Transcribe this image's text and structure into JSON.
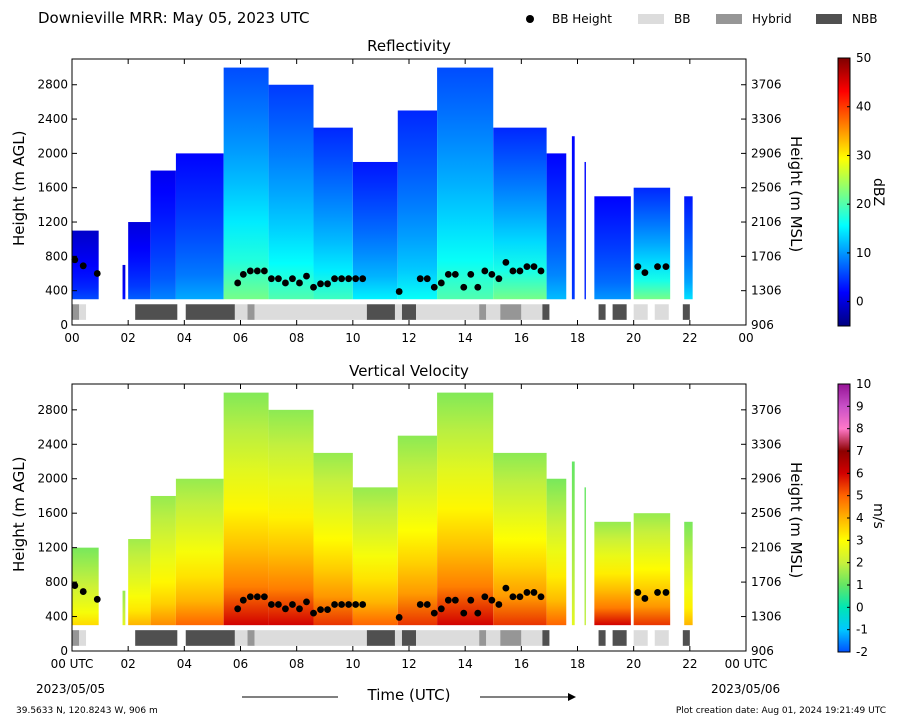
{
  "figure_title": "Downieville MRR:  May 05, 2023 UTC",
  "legend": [
    {
      "label": "BB Height",
      "kind": "dot",
      "color": "#000000"
    },
    {
      "label": "BB",
      "kind": "swatch",
      "color": "#dcdcdc"
    },
    {
      "label": "Hybrid",
      "kind": "swatch",
      "color": "#969696"
    },
    {
      "label": "NBB",
      "kind": "swatch",
      "color": "#505050"
    }
  ],
  "footer": {
    "location": "39.5633 N, 120.8243 W, 906 m",
    "creation": "Plot creation date: Aug 01, 2024 19:21:49 UTC"
  },
  "x_axis": {
    "label": "Time (UTC)",
    "ticks": [
      "00",
      "02",
      "04",
      "06",
      "08",
      "10",
      "12",
      "14",
      "16",
      "18",
      "20",
      "22",
      "00"
    ],
    "tick_values": [
      0,
      2,
      4,
      6,
      8,
      10,
      12,
      14,
      16,
      18,
      20,
      22,
      24
    ],
    "bottom_ticks": [
      "00 UTC",
      "02",
      "04",
      "06",
      "08",
      "10",
      "12",
      "14",
      "16",
      "18",
      "20",
      "22",
      "00 UTC"
    ],
    "start_date": "2023/05/05",
    "end_date": "2023/05/06",
    "range": [
      0,
      24
    ]
  },
  "left_axis": {
    "label": "Height (m AGL)",
    "ticks": [
      "0",
      "400",
      "800",
      "1200",
      "1600",
      "2000",
      "2400",
      "2800"
    ],
    "tick_values": [
      0,
      400,
      800,
      1200,
      1600,
      2000,
      2400,
      2800
    ],
    "range": [
      0,
      3100
    ]
  },
  "right_axis": {
    "label": "Height (m MSL)",
    "ticks": [
      "906",
      "1306",
      "1706",
      "2106",
      "2506",
      "2906",
      "3306",
      "3706"
    ]
  },
  "colors": {
    "bb": "#dcdcdc",
    "hybrid": "#969696",
    "nbb": "#505050",
    "dot": "#000000"
  },
  "chart_data": [
    {
      "type": "heatmap",
      "title": "Reflectivity",
      "xlabel": "",
      "ylabel": "Height (m AGL)",
      "y2label": "Height (m MSL)",
      "colorbar_label": "dBZ",
      "colorbar_ticks": [
        "0",
        "10",
        "20",
        "30",
        "40",
        "50"
      ],
      "colorbar_tick_values": [
        0,
        10,
        20,
        30,
        40,
        50
      ],
      "colorbar_range": [
        -5,
        50
      ],
      "colormap": [
        "#00007f",
        "#0000ff",
        "#007fff",
        "#00ffff",
        "#7fff7f",
        "#ffff00",
        "#ff7f00",
        "#ff0000",
        "#7f0000"
      ],
      "echo_columns": [
        {
          "t0": 0.0,
          "t1": 0.95,
          "top": 1100,
          "v_low": 6,
          "v_high": -1
        },
        {
          "t0": 1.8,
          "t1": 1.9,
          "top": 700,
          "v_low": 3,
          "v_high": 0
        },
        {
          "t0": 2.0,
          "t1": 2.8,
          "top": 1200,
          "v_low": 7,
          "v_high": 0
        },
        {
          "t0": 2.8,
          "t1": 3.7,
          "top": 1800,
          "v_low": 9,
          "v_high": 1
        },
        {
          "t0": 3.7,
          "t1": 5.4,
          "top": 2000,
          "v_low": 11,
          "v_high": 2
        },
        {
          "t0": 5.4,
          "t1": 7.0,
          "top": 3000,
          "v_low": 22,
          "v_high": 6
        },
        {
          "t0": 7.0,
          "t1": 8.6,
          "top": 2800,
          "v_low": 20,
          "v_high": 5
        },
        {
          "t0": 8.6,
          "t1": 10.0,
          "top": 2300,
          "v_low": 19,
          "v_high": 4
        },
        {
          "t0": 10.0,
          "t1": 11.6,
          "top": 1900,
          "v_low": 15,
          "v_high": 3
        },
        {
          "t0": 11.6,
          "t1": 13.0,
          "top": 2500,
          "v_low": 16,
          "v_high": 4
        },
        {
          "t0": 13.0,
          "t1": 15.0,
          "top": 3000,
          "v_low": 20,
          "v_high": 6
        },
        {
          "t0": 15.0,
          "t1": 16.9,
          "top": 2300,
          "v_low": 22,
          "v_high": 4
        },
        {
          "t0": 16.9,
          "t1": 17.6,
          "top": 2000,
          "v_low": 12,
          "v_high": 2
        },
        {
          "t0": 17.8,
          "t1": 17.9,
          "top": 2200,
          "v_low": 5,
          "v_high": 2
        },
        {
          "t0": 18.25,
          "t1": 18.3,
          "top": 1900,
          "v_low": 4,
          "v_high": 2
        },
        {
          "t0": 18.6,
          "t1": 19.9,
          "top": 1500,
          "v_low": 10,
          "v_high": 2
        },
        {
          "t0": 20.0,
          "t1": 21.3,
          "top": 1600,
          "v_low": 22,
          "v_high": 4
        },
        {
          "t0": 21.8,
          "t1": 22.1,
          "top": 1500,
          "v_low": 14,
          "v_high": 3
        }
      ]
    },
    {
      "type": "heatmap",
      "title": "Vertical Velocity",
      "xlabel": "Time (UTC)",
      "ylabel": "Height (m AGL)",
      "y2label": "Height (m MSL)",
      "colorbar_label": "m/s",
      "colorbar_ticks": [
        "-2",
        "-1",
        "0",
        "1",
        "2",
        "3",
        "4",
        "5",
        "6",
        "7",
        "8",
        "9",
        "10"
      ],
      "colorbar_tick_values": [
        -2,
        -1,
        0,
        1,
        2,
        3,
        4,
        5,
        6,
        7,
        8,
        9,
        10
      ],
      "colorbar_range": [
        -2,
        10
      ],
      "colormap": [
        "#0050ff",
        "#00c8ff",
        "#00e6b4",
        "#64e664",
        "#c8f03c",
        "#ffff00",
        "#ffb400",
        "#ff6400",
        "#d20000",
        "#8c0000",
        "#ff78c8",
        "#c850c8",
        "#961496"
      ],
      "echo_columns": [
        {
          "t0": 0.0,
          "t1": 0.95,
          "top": 1200,
          "v_low": 3.5,
          "v_high": 1.2
        },
        {
          "t0": 1.8,
          "t1": 1.9,
          "top": 700,
          "v_low": 2.5,
          "v_high": 1.5
        },
        {
          "t0": 2.0,
          "t1": 2.8,
          "top": 1300,
          "v_low": 4.0,
          "v_high": 1.6
        },
        {
          "t0": 2.8,
          "t1": 3.7,
          "top": 1800,
          "v_low": 4.5,
          "v_high": 1.5
        },
        {
          "t0": 3.7,
          "t1": 5.4,
          "top": 2000,
          "v_low": 5.0,
          "v_high": 1.5
        },
        {
          "t0": 5.4,
          "t1": 7.0,
          "top": 3000,
          "v_low": 6.0,
          "v_high": 1.3
        },
        {
          "t0": 7.0,
          "t1": 8.6,
          "top": 2800,
          "v_low": 6.0,
          "v_high": 1.4
        },
        {
          "t0": 8.6,
          "t1": 10.0,
          "top": 2300,
          "v_low": 5.5,
          "v_high": 1.5
        },
        {
          "t0": 10.0,
          "t1": 11.6,
          "top": 1900,
          "v_low": 5.0,
          "v_high": 1.5
        },
        {
          "t0": 11.6,
          "t1": 13.0,
          "top": 2500,
          "v_low": 5.5,
          "v_high": 1.4
        },
        {
          "t0": 13.0,
          "t1": 15.0,
          "top": 3000,
          "v_low": 6.0,
          "v_high": 1.3
        },
        {
          "t0": 15.0,
          "t1": 16.9,
          "top": 2300,
          "v_low": 5.5,
          "v_high": 1.4
        },
        {
          "t0": 16.9,
          "t1": 17.6,
          "top": 2000,
          "v_low": 5.0,
          "v_high": 1.2
        },
        {
          "t0": 17.8,
          "t1": 17.9,
          "top": 2200,
          "v_low": 2.5,
          "v_high": 1.0
        },
        {
          "t0": 18.25,
          "t1": 18.3,
          "top": 1900,
          "v_low": 2.0,
          "v_high": 1.0
        },
        {
          "t0": 18.6,
          "t1": 19.9,
          "top": 1500,
          "v_low": 6.0,
          "v_high": 1.5
        },
        {
          "t0": 20.0,
          "t1": 21.3,
          "top": 1600,
          "v_low": 5.5,
          "v_high": 1.5
        },
        {
          "t0": 21.8,
          "t1": 22.1,
          "top": 1500,
          "v_low": 4.0,
          "v_high": 1.2
        }
      ]
    }
  ],
  "bright_band_heights": [
    {
      "t": 0.1,
      "h": 760
    },
    {
      "t": 0.4,
      "h": 690
    },
    {
      "t": 0.9,
      "h": 600
    },
    {
      "t": 5.9,
      "h": 490
    },
    {
      "t": 6.1,
      "h": 590
    },
    {
      "t": 6.35,
      "h": 630
    },
    {
      "t": 6.6,
      "h": 630
    },
    {
      "t": 6.85,
      "h": 630
    },
    {
      "t": 7.1,
      "h": 540
    },
    {
      "t": 7.35,
      "h": 540
    },
    {
      "t": 7.6,
      "h": 490
    },
    {
      "t": 7.85,
      "h": 540
    },
    {
      "t": 8.1,
      "h": 490
    },
    {
      "t": 8.35,
      "h": 570
    },
    {
      "t": 8.6,
      "h": 440
    },
    {
      "t": 8.85,
      "h": 480
    },
    {
      "t": 9.1,
      "h": 480
    },
    {
      "t": 9.35,
      "h": 540
    },
    {
      "t": 9.6,
      "h": 540
    },
    {
      "t": 9.85,
      "h": 540
    },
    {
      "t": 10.1,
      "h": 540
    },
    {
      "t": 10.35,
      "h": 540
    },
    {
      "t": 11.65,
      "h": 390
    },
    {
      "t": 12.4,
      "h": 540
    },
    {
      "t": 12.65,
      "h": 540
    },
    {
      "t": 12.9,
      "h": 440
    },
    {
      "t": 13.15,
      "h": 490
    },
    {
      "t": 13.4,
      "h": 590
    },
    {
      "t": 13.65,
      "h": 590
    },
    {
      "t": 13.95,
      "h": 440
    },
    {
      "t": 14.2,
      "h": 590
    },
    {
      "t": 14.45,
      "h": 440
    },
    {
      "t": 14.7,
      "h": 630
    },
    {
      "t": 14.95,
      "h": 590
    },
    {
      "t": 15.2,
      "h": 540
    },
    {
      "t": 15.45,
      "h": 730
    },
    {
      "t": 15.7,
      "h": 630
    },
    {
      "t": 15.95,
      "h": 630
    },
    {
      "t": 16.2,
      "h": 680
    },
    {
      "t": 16.45,
      "h": 680
    },
    {
      "t": 16.7,
      "h": 630
    },
    {
      "t": 20.15,
      "h": 680
    },
    {
      "t": 20.4,
      "h": 610
    },
    {
      "t": 20.85,
      "h": 680
    },
    {
      "t": 21.15,
      "h": 680
    }
  ],
  "bright_band_type_strip": [
    {
      "t0": 0.0,
      "t1": 0.25,
      "type": "hybrid"
    },
    {
      "t0": 0.25,
      "t1": 0.5,
      "type": "bb"
    },
    {
      "t0": 2.25,
      "t1": 3.75,
      "type": "nbb"
    },
    {
      "t0": 4.05,
      "t1": 5.8,
      "type": "nbb"
    },
    {
      "t0": 5.8,
      "t1": 6.25,
      "type": "bb"
    },
    {
      "t0": 6.25,
      "t1": 6.5,
      "type": "hybrid"
    },
    {
      "t0": 6.5,
      "t1": 10.5,
      "type": "bb"
    },
    {
      "t0": 10.5,
      "t1": 11.5,
      "type": "nbb"
    },
    {
      "t0": 11.5,
      "t1": 11.75,
      "type": "bb"
    },
    {
      "t0": 11.75,
      "t1": 12.25,
      "type": "nbb"
    },
    {
      "t0": 12.25,
      "t1": 14.5,
      "type": "bb"
    },
    {
      "t0": 14.5,
      "t1": 14.75,
      "type": "hybrid"
    },
    {
      "t0": 14.75,
      "t1": 15.25,
      "type": "bb"
    },
    {
      "t0": 15.25,
      "t1": 16.0,
      "type": "hybrid"
    },
    {
      "t0": 16.0,
      "t1": 16.75,
      "type": "bb"
    },
    {
      "t0": 16.75,
      "t1": 17.0,
      "type": "nbb"
    },
    {
      "t0": 18.75,
      "t1": 19.0,
      "type": "nbb"
    },
    {
      "t0": 19.25,
      "t1": 19.75,
      "type": "nbb"
    },
    {
      "t0": 20.0,
      "t1": 20.5,
      "type": "bb"
    },
    {
      "t0": 20.75,
      "t1": 21.25,
      "type": "bb"
    },
    {
      "t0": 21.75,
      "t1": 22.0,
      "type": "nbb"
    }
  ]
}
